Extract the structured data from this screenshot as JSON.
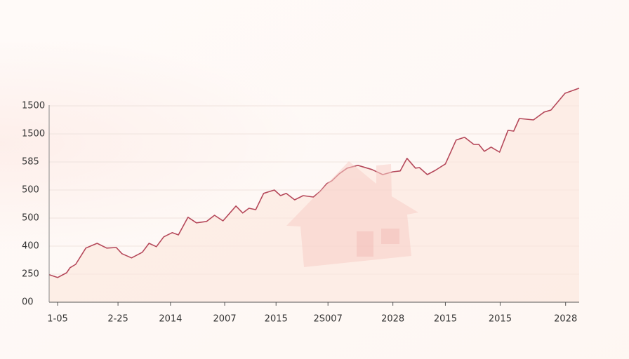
{
  "chart_data": {
    "type": "line",
    "x": [
      -0.15,
      0,
      0.16,
      0.22,
      0.32,
      0.5,
      0.7,
      0.87,
      1.04,
      1.14,
      1.31,
      1.5,
      1.62,
      1.75,
      1.88,
      2.03,
      2.14,
      2.31,
      2.46,
      2.64,
      2.78,
      2.93,
      3.16,
      3.28,
      3.39,
      3.51,
      3.65,
      3.84,
      3.95,
      4.05,
      4.2,
      4.35,
      4.53,
      4.65,
      4.77,
      4.86,
      4.99,
      5.13,
      5.32,
      5.57,
      5.76,
      5.94,
      6.07,
      6.19,
      6.34,
      6.41,
      6.55,
      6.69,
      6.87,
      7.06,
      7.21,
      7.37,
      7.46,
      7.56,
      7.68,
      7.83,
      7.98,
      8.08,
      8.18,
      8.43,
      8.62,
      8.74,
      8.99,
      9.24
    ],
    "series": [
      {
        "color": "#b5485a",
        "values": [
          0.98,
          0.88,
          1.05,
          1.23,
          1.35,
          1.93,
          2.1,
          1.93,
          1.95,
          1.73,
          1.58,
          1.78,
          2.1,
          1.98,
          2.33,
          2.48,
          2.4,
          3.03,
          2.83,
          2.88,
          3.1,
          2.9,
          3.43,
          3.18,
          3.35,
          3.3,
          3.88,
          4.0,
          3.8,
          3.88,
          3.65,
          3.8,
          3.75,
          3.95,
          4.23,
          4.33,
          4.58,
          4.78,
          4.88,
          4.73,
          4.55,
          4.65,
          4.68,
          5.13,
          4.78,
          4.8,
          4.55,
          4.7,
          4.93,
          5.78,
          5.88,
          5.63,
          5.63,
          5.38,
          5.53,
          5.35,
          6.13,
          6.1,
          6.55,
          6.5,
          6.78,
          6.85,
          7.45,
          7.63
        ]
      }
    ],
    "xlim": [
      -0.15,
      9.24
    ],
    "xticks": [
      {
        "value": 0,
        "label": "1-05"
      },
      {
        "value": 1.07,
        "label": "2-25"
      },
      {
        "value": 2,
        "label": "2014"
      },
      {
        "value": 2.96,
        "label": "2007"
      },
      {
        "value": 3.87,
        "label": "2015"
      },
      {
        "value": 4.79,
        "label": "2S007"
      },
      {
        "value": 5.94,
        "label": "2028"
      },
      {
        "value": 6.87,
        "label": "2015"
      },
      {
        "value": 7.84,
        "label": "2015"
      },
      {
        "value": 9,
        "label": "2028"
      }
    ],
    "ylim": [
      0,
      7.8
    ],
    "yticks": [
      {
        "value": 0,
        "label": "00"
      },
      {
        "value": 1,
        "label": "250"
      },
      {
        "value": 2,
        "label": "400"
      },
      {
        "value": 3,
        "label": "500"
      },
      {
        "value": 4,
        "label": "500"
      },
      {
        "value": 5,
        "label": "585"
      },
      {
        "value": 6,
        "label": "1500"
      },
      {
        "value": 7,
        "label": "1500"
      }
    ],
    "grid": true
  }
}
